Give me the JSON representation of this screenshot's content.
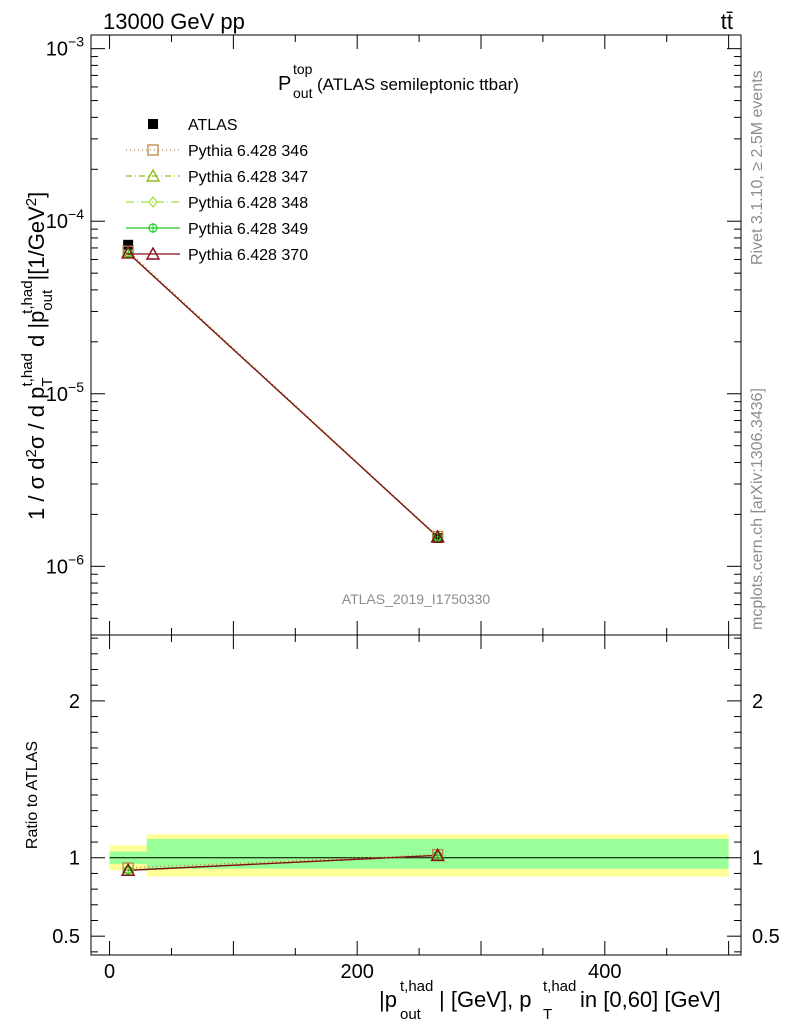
{
  "header": {
    "energy_label": "13000 GeV pp",
    "process_label": "tt̄"
  },
  "side_labels": {
    "rivet": "Rivet 3.1.10, ≥ 2.5M events",
    "mcplots": "mcplots.cern.ch [arXiv:1306.3436]"
  },
  "chart_data": [
    {
      "type": "line",
      "panel": "main",
      "title_main": "P",
      "title_sup": "top",
      "title_sub": "out",
      "title_rest": " (ATLAS semileptonic ttbar)",
      "watermark": "ATLAS_2019_I1750330",
      "ylabel": "1 / σ d²σ / d p_T^{t,had} d |p_out^{t,had}| [1/GeV²]",
      "yscale": "log",
      "ylim": [
        4e-07,
        0.0012
      ],
      "xlim": [
        -15,
        510
      ],
      "y_ticks": [
        {
          "value": 1e-06,
          "base": "10",
          "exp": "−6"
        },
        {
          "value": 1e-05,
          "base": "10",
          "exp": "−5"
        },
        {
          "value": 0.0001,
          "base": "10",
          "exp": "−4"
        },
        {
          "value": 0.001,
          "base": "10",
          "exp": "−3"
        }
      ],
      "x": [
        15,
        265
      ],
      "series": [
        {
          "name": "ATLAS",
          "marker": "square-filled",
          "color": "#000000",
          "dash": "none",
          "values": [
            7.3e-05,
            1.46e-06
          ]
        },
        {
          "name": "Pythia 6.428 346",
          "marker": "square-open",
          "color": "#b8864b",
          "dash": "1,3",
          "values": [
            6.7e-05,
            1.49e-06
          ]
        },
        {
          "name": "Pythia 6.428 347",
          "marker": "triangle-open",
          "color": "#8fbf1f",
          "dash": "6,3,1,3",
          "values": [
            6.55e-05,
            1.48e-06
          ]
        },
        {
          "name": "Pythia 6.428 348",
          "marker": "diamond-open",
          "color": "#9fe33a",
          "dash": "8,3,1,3",
          "values": [
            6.55e-05,
            1.48e-06
          ]
        },
        {
          "name": "Pythia 6.428 349",
          "marker": "circle-cross",
          "color": "#22cc22",
          "dash": "none",
          "values": [
            6.55e-05,
            1.48e-06
          ]
        },
        {
          "name": "Pythia 6.428 370",
          "marker": "triangle-open",
          "color": "#8b0a1a",
          "dash": "none",
          "values": [
            6.55e-05,
            1.48e-06
          ]
        }
      ]
    },
    {
      "type": "line",
      "panel": "ratio",
      "ylabel": "Ratio to ATLAS",
      "xlabel_parts": [
        "|p",
        "t,had",
        "out",
        "| [GeV], p",
        "t,had",
        "T",
        " in [0,60] [GeV]"
      ],
      "ylim": [
        0.38,
        2.42
      ],
      "xlim": [
        -15,
        510
      ],
      "y_ticks": [
        0.5,
        1,
        2
      ],
      "y_tick_labels": [
        "0.5",
        "1",
        "2"
      ],
      "x_ticks": [
        0,
        200,
        400
      ],
      "x_tick_labels": [
        "0",
        "200",
        "400"
      ],
      "bands": [
        {
          "x_range": [
            0,
            30
          ],
          "outer": [
            0.92,
            1.08
          ],
          "inner": [
            0.96,
            1.04
          ]
        },
        {
          "x_range": [
            30,
            500
          ],
          "outer": [
            0.88,
            1.15
          ],
          "inner": [
            0.93,
            1.12
          ]
        }
      ],
      "x": [
        15,
        265
      ],
      "series": [
        {
          "name": "Pythia 6.428 346",
          "values": [
            0.935,
            1.02
          ]
        },
        {
          "name": "Pythia 6.428 347",
          "values": [
            0.92,
            1.015
          ]
        },
        {
          "name": "Pythia 6.428 348",
          "values": [
            0.92,
            1.015
          ]
        },
        {
          "name": "Pythia 6.428 349",
          "values": [
            0.92,
            1.015
          ]
        },
        {
          "name": "Pythia 6.428 370",
          "values": [
            0.92,
            1.015
          ]
        }
      ]
    }
  ]
}
